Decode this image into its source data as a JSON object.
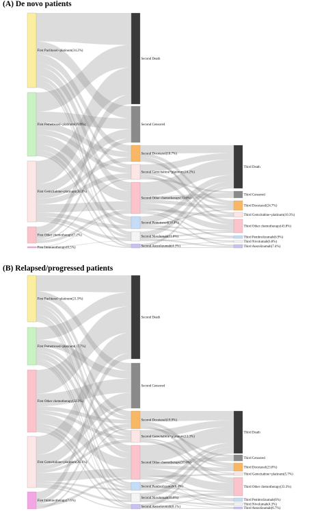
{
  "panels": [
    {
      "title": "(A) De novo patients",
      "nodes": [
        {
          "id": "a1",
          "col": 1,
          "label": "First Paclitaxel+platinum(34.2%)",
          "color": "#fbeea0"
        },
        {
          "id": "a2",
          "col": 1,
          "label": "First Pemetrexed+platinum(29.9%)",
          "color": "#c9f2c3"
        },
        {
          "id": "a3",
          "col": 1,
          "label": "First Gemcitabine+platinum(28.3%)",
          "color": "#fde6e6"
        },
        {
          "id": "a4",
          "col": 1,
          "label": "First Other chemotherapy(7.2%)",
          "color": "#fbc4cc"
        },
        {
          "id": "a5",
          "col": 1,
          "label": "First Immunotherapy(0.5%)",
          "color": "#f2a6e3"
        },
        {
          "id": "b1",
          "col": 2,
          "label": "Second Death",
          "color": "#3a3a3a"
        },
        {
          "id": "b2",
          "col": 2,
          "label": "Second Censored",
          "color": "#8a8a8a"
        },
        {
          "id": "b3",
          "col": 2,
          "label": "Second Docetaxel(18.7%)",
          "color": "#f8b765"
        },
        {
          "id": "b4",
          "col": 2,
          "label": "Second Gemcitabine+platinum(16.2%)",
          "color": "#fde6e6"
        },
        {
          "id": "b5",
          "col": 2,
          "label": "Second Other chemotherapy(33.6%)",
          "color": "#fbc4cc"
        },
        {
          "id": "b6",
          "col": 2,
          "label": "Second Pemetrexed(14.4%)",
          "color": "#c5dcf7"
        },
        {
          "id": "b7",
          "col": 2,
          "label": "Second Nivolumab(11.6%)",
          "color": "#f4f4f4"
        },
        {
          "id": "b8",
          "col": 2,
          "label": "Second Atezolizumab(4.3%)",
          "color": "#c7c2f0"
        },
        {
          "id": "c1",
          "col": 3,
          "label": "Third Death",
          "color": "#3a3a3a"
        },
        {
          "id": "c2",
          "col": 3,
          "label": "Third Censored",
          "color": "#8a8a8a"
        },
        {
          "id": "c3",
          "col": 3,
          "label": "Third Docetaxel(24.7%)",
          "color": "#f8b765"
        },
        {
          "id": "c4",
          "col": 3,
          "label": "Third Gemcitabine+platinum(10.3%)",
          "color": "#fde6e6"
        },
        {
          "id": "c5",
          "col": 3,
          "label": "Third Other chemotherapy(43.8%)",
          "color": "#fbc4cc"
        },
        {
          "id": "c6",
          "col": 3,
          "label": "Third Pembrolizumab(6.9%)",
          "color": "#c5dcf7"
        },
        {
          "id": "c7",
          "col": 3,
          "label": "Third Nivolumab(6.8%)",
          "color": "#f4f4f4"
        },
        {
          "id": "c8",
          "col": 3,
          "label": "Third Atezolizumab(7.4%)",
          "color": "#c7c2f0"
        }
      ]
    },
    {
      "title": "(B) Relapsed/progressed patients",
      "nodes": [
        {
          "id": "a1",
          "col": 1,
          "label": "First Paclitaxel+platinum(21.9%)",
          "color": "#fbeea0"
        },
        {
          "id": "a2",
          "col": 1,
          "label": "First Pemetrexed+platinum(17.7%)",
          "color": "#c9f2c3"
        },
        {
          "id": "a3",
          "col": 1,
          "label": "First Other chemotherapy(32.3%)",
          "color": "#fbc4cc"
        },
        {
          "id": "a4",
          "col": 1,
          "label": "First Gemcitabine+platinum(26.1%)",
          "color": "#fde6e6"
        },
        {
          "id": "a5",
          "col": 1,
          "label": "First Immunotherapy(7.6%)",
          "color": "#f2a6e3"
        },
        {
          "id": "b1",
          "col": 2,
          "label": "Second Death",
          "color": "#3a3a3a"
        },
        {
          "id": "b2",
          "col": 2,
          "label": "Second Censored",
          "color": "#8a8a8a"
        },
        {
          "id": "b3",
          "col": 2,
          "label": "Second Docetaxel(19.9%)",
          "color": "#f8b765"
        },
        {
          "id": "b4",
          "col": 2,
          "label": "Second Gemcitabine+platinum(13.3%)",
          "color": "#fde6e6"
        },
        {
          "id": "b5",
          "col": 2,
          "label": "Second Other chemotherapy(37.6%)",
          "color": "#fbc4cc"
        },
        {
          "id": "b6",
          "col": 2,
          "label": "Second Pembrolizumab(8.4%)",
          "color": "#c5dcf7"
        },
        {
          "id": "b7",
          "col": 2,
          "label": "Second Nivolumab(10.6%)",
          "color": "#f4f4f4"
        },
        {
          "id": "b8",
          "col": 2,
          "label": "Second Atezolizumab(8.1%)",
          "color": "#c7c2f0"
        },
        {
          "id": "c1",
          "col": 3,
          "label": "Third Death",
          "color": "#3a3a3a"
        },
        {
          "id": "c2",
          "col": 3,
          "label": "Third Censored",
          "color": "#8a8a8a"
        },
        {
          "id": "c3",
          "col": 3,
          "label": "Third Docetaxel(23.8%)",
          "color": "#f8b765"
        },
        {
          "id": "c4",
          "col": 3,
          "label": "Third Gemcitabine+platinum(5.7%)",
          "color": "#fde6e6"
        },
        {
          "id": "c5",
          "col": 3,
          "label": "Third Other chemotherapy(33.3%)",
          "color": "#fbc4cc"
        },
        {
          "id": "c6",
          "col": 3,
          "label": "Third Pembrolizumab(6%)",
          "color": "#c5dcf7"
        },
        {
          "id": "c7",
          "col": 3,
          "label": "Third Nivolumab(4.3%)",
          "color": "#f4f4f4"
        },
        {
          "id": "c8",
          "col": 3,
          "label": "Third Atezolizumab(6.7%)",
          "color": "#c7c2f0"
        }
      ]
    }
  ]
}
